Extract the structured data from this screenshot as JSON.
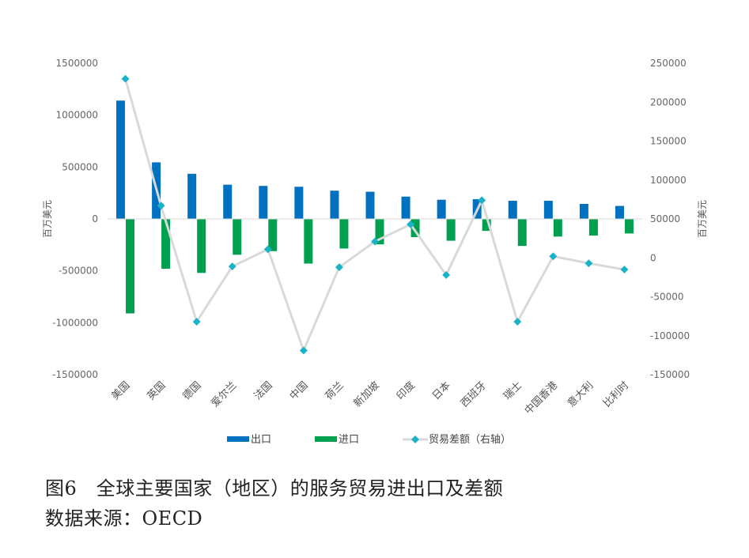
{
  "chart_data": {
    "type": "bar+line",
    "categories": [
      "美国",
      "英国",
      "德国",
      "爱尔兰",
      "法国",
      "中国",
      "荷兰",
      "新加坡",
      "印度",
      "日本",
      "西班牙",
      "瑞士",
      "中国香港",
      "意大利",
      "比利时"
    ],
    "series": [
      {
        "name": "出口",
        "axis": "left",
        "type": "bar",
        "color": "#0070C0",
        "values": [
          1140000,
          545000,
          435000,
          330000,
          318000,
          310000,
          272000,
          262000,
          215000,
          185000,
          190000,
          175000,
          175000,
          145000,
          125000
        ]
      },
      {
        "name": "进口",
        "axis": "left",
        "type": "bar",
        "color": "#00A050",
        "values": [
          -910000,
          -480000,
          -520000,
          -345000,
          -310000,
          -430000,
          -285000,
          -245000,
          -175000,
          -210000,
          -115000,
          -260000,
          -170000,
          -160000,
          -140000
        ]
      },
      {
        "name": "贸易差额（右轴）",
        "axis": "right",
        "type": "line",
        "color": "#19B2C8",
        "line_color": "#D9D9D9",
        "values": [
          230000,
          67000,
          -82000,
          -11000,
          11000,
          -119000,
          -12000,
          21000,
          43000,
          -22000,
          74000,
          -82000,
          2000,
          -7000,
          -15000
        ]
      }
    ],
    "y_left": {
      "label": "百万美元",
      "min": -1500000,
      "max": 1500000,
      "ticks": [
        "1500000",
        "1000000",
        "500000",
        "0",
        "-500000",
        "-1000000",
        "-1500000"
      ]
    },
    "y_right": {
      "label": "百万美元",
      "min": -150000,
      "max": 250000,
      "ticks": [
        "250000",
        "200000",
        "150000",
        "100000",
        "50000",
        "0",
        "-50000",
        "-100000",
        "-150000"
      ]
    },
    "legend": [
      "出口",
      "进口",
      "贸易差额（右轴）"
    ],
    "legend_position": "bottom",
    "grid": false
  },
  "caption": {
    "title": "图6　全球主要国家（地区）的服务贸易进出口及差额",
    "source": "数据来源：OECD"
  }
}
